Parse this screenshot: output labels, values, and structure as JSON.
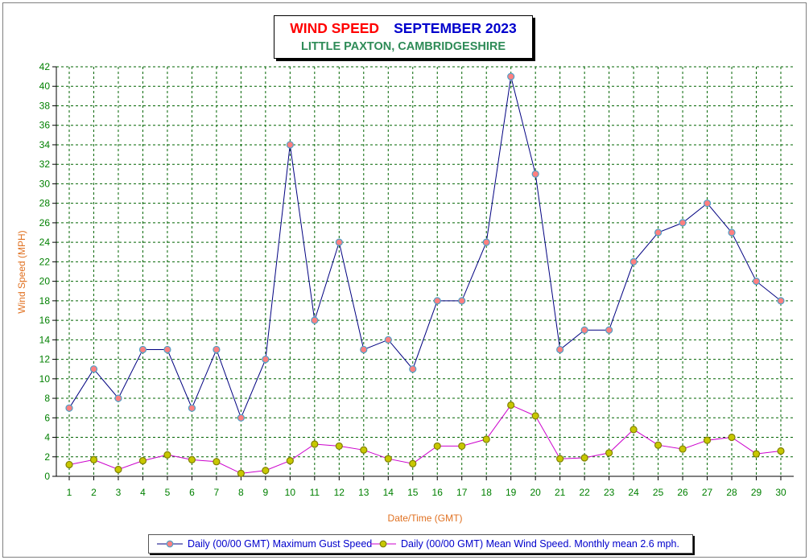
{
  "title": {
    "part1": "WIND SPEED",
    "part2": "SEPTEMBER 2023",
    "subtitle": "LITTLE PAXTON, CAMBRIDGESHIRE"
  },
  "legend": {
    "gust_label": "Daily (00/00 GMT) Maximum Gust Speed",
    "mean_label": "Daily (00/00 GMT) Mean Wind Speed. Monthly mean 2.6 mph."
  },
  "colors": {
    "gust_line": "#000080",
    "gust_marker": "#ff8080",
    "gust_marker_edge": "#4fa0c8",
    "mean_line": "#cc00cc",
    "mean_marker": "#c8c800",
    "mean_marker_edge": "#808000",
    "grid": "#006400",
    "tick": "#008000",
    "axis_label": "#e07020"
  },
  "chart_data": {
    "type": "line",
    "xlabel": "Date/Time (GMT)",
    "ylabel": "Wind Speed (MPH)",
    "ylim": [
      0,
      42
    ],
    "ytick_step": 2,
    "grid": true,
    "legend_position": "bottom",
    "x": [
      1,
      2,
      3,
      4,
      5,
      6,
      7,
      8,
      9,
      10,
      11,
      12,
      13,
      14,
      15,
      16,
      17,
      18,
      19,
      20,
      21,
      22,
      23,
      24,
      25,
      26,
      27,
      28,
      29,
      30
    ],
    "series": [
      {
        "name": "Daily (00/00 GMT) Maximum Gust Speed",
        "values": [
          7,
          11,
          8,
          13,
          13,
          7,
          13,
          6,
          12,
          34,
          16,
          24,
          13,
          14,
          11,
          18,
          18,
          24,
          41,
          31,
          13,
          15,
          15,
          22,
          25,
          26,
          28,
          25,
          20,
          18
        ]
      },
      {
        "name": "Daily (00/00 GMT) Mean Wind Speed. Monthly mean 2.6 mph.",
        "values": [
          1.2,
          1.7,
          0.7,
          1.6,
          2.2,
          1.7,
          1.5,
          0.3,
          0.6,
          1.6,
          3.3,
          3.1,
          2.7,
          1.8,
          1.3,
          3.1,
          3.1,
          3.8,
          7.3,
          6.2,
          1.8,
          1.9,
          2.4,
          4.8,
          3.2,
          2.8,
          3.7,
          4.0,
          2.3,
          2.6
        ]
      }
    ]
  }
}
